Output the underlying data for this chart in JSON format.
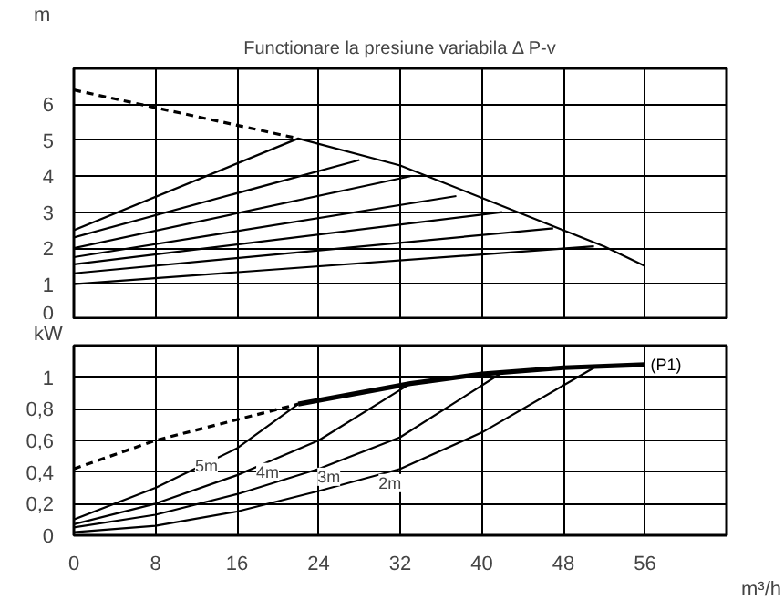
{
  "chart_data": [
    {
      "type": "line",
      "title": "Functionare la presiune variabila Δ P-v",
      "ylabel": "m",
      "xlim": [
        0,
        64
      ],
      "ylim": [
        0,
        7
      ],
      "xticks": [
        0,
        8,
        16,
        24,
        32,
        40,
        48,
        56,
        64
      ],
      "yticks": [
        0,
        1,
        2,
        3,
        4,
        5,
        6,
        {
          "value": 7,
          "label": null
        }
      ],
      "grid": true,
      "tick_labels": "y",
      "marker": "none",
      "series": [
        {
          "color": "#000000",
          "line_style": "dashed",
          "x": [
            0,
            22
          ],
          "values": [
            6.4,
            5.05
          ]
        },
        {
          "color": "#000000",
          "x": [
            0,
            22,
            32,
            40,
            48,
            52,
            56
          ],
          "values": [
            2.5,
            5.05,
            4.3,
            3.4,
            2.5,
            2.05,
            1.5
          ]
        },
        {
          "color": "#000000",
          "x": [
            0,
            28
          ],
          "values": [
            2.3,
            4.45
          ]
        },
        {
          "color": "#000000",
          "x": [
            0,
            33
          ],
          "values": [
            2.0,
            4.0
          ]
        },
        {
          "color": "#000000",
          "x": [
            0,
            37.5
          ],
          "values": [
            1.75,
            3.45
          ]
        },
        {
          "color": "#000000",
          "x": [
            0,
            42
          ],
          "values": [
            1.55,
            3.0
          ]
        },
        {
          "color": "#000000",
          "x": [
            0,
            47
          ],
          "values": [
            1.3,
            2.55
          ]
        },
        {
          "color": "#000000",
          "x": [
            0,
            51
          ],
          "values": [
            1.0,
            2.05
          ]
        }
      ]
    },
    {
      "type": "line",
      "ylabel": "kW",
      "xlabel": "m³/h",
      "xlim": [
        0,
        64
      ],
      "ylim": [
        0,
        1.2
      ],
      "xticks": [
        0,
        8,
        16,
        24,
        32,
        40,
        48,
        56,
        {
          "value": 64,
          "label": null
        }
      ],
      "yticks": [
        0,
        {
          "value": 0.2,
          "label": "0,2"
        },
        {
          "value": 0.4,
          "label": "0,4"
        },
        {
          "value": 0.6,
          "label": "0,6"
        },
        {
          "value": 0.8,
          "label": "0,8"
        },
        1,
        {
          "value": 1.2,
          "label": null
        }
      ],
      "grid": true,
      "marker": "none",
      "annotations": [
        {
          "text": "5m",
          "x": 13,
          "y": 0.44
        },
        {
          "text": "4m",
          "x": 19,
          "y": 0.4
        },
        {
          "text": "3m",
          "x": 25,
          "y": 0.37
        },
        {
          "text": "2m",
          "x": 31,
          "y": 0.33
        }
      ],
      "series": [
        {
          "color": "#000000",
          "line_style": "dashed",
          "x": [
            0,
            8,
            22
          ],
          "values": [
            0.42,
            0.6,
            0.83
          ]
        },
        {
          "name": "(P1)",
          "color": "#000000",
          "x": [
            22,
            33,
            40,
            48,
            56
          ],
          "values": [
            0.83,
            0.96,
            1.02,
            1.06,
            1.08
          ]
        },
        {
          "color": "#000000",
          "x": [
            0,
            8,
            16,
            22
          ],
          "values": [
            0.1,
            0.3,
            0.55,
            0.83
          ]
        },
        {
          "color": "#000000",
          "x": [
            0,
            8,
            16,
            24,
            33
          ],
          "values": [
            0.07,
            0.2,
            0.38,
            0.6,
            0.96
          ]
        },
        {
          "color": "#000000",
          "x": [
            0,
            8,
            16,
            24,
            32,
            42
          ],
          "values": [
            0.05,
            0.13,
            0.26,
            0.42,
            0.62,
            1.03
          ]
        },
        {
          "color": "#000000",
          "x": [
            0,
            8,
            16,
            24,
            32,
            40,
            51
          ],
          "values": [
            0.02,
            0.06,
            0.15,
            0.28,
            0.42,
            0.65,
            1.06
          ]
        }
      ]
    }
  ]
}
